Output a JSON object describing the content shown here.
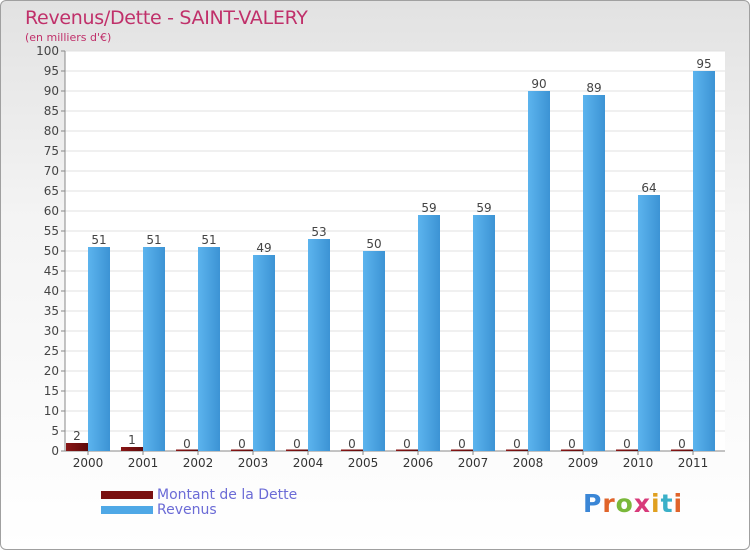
{
  "title": "Revenus/Dette - SAINT-VALERY",
  "subtitle": "(en milliers d'€)",
  "logo": {
    "text": "Proxiti"
  },
  "chart_data": {
    "type": "bar",
    "categories": [
      "2000",
      "2001",
      "2002",
      "2003",
      "2004",
      "2005",
      "2006",
      "2007",
      "2008",
      "2009",
      "2010",
      "2011"
    ],
    "series": [
      {
        "name": "Montant de la Dette",
        "values": [
          2,
          1,
          0,
          0,
          0,
          0,
          0,
          0,
          0,
          0,
          0,
          0
        ],
        "color": "#7a1010"
      },
      {
        "name": "Revenus",
        "values": [
          51,
          51,
          51,
          49,
          53,
          50,
          59,
          59,
          90,
          89,
          64,
          95
        ],
        "color": "#4fa8e6"
      }
    ],
    "ylim": [
      0,
      100
    ],
    "yticks": [
      0,
      5,
      10,
      15,
      20,
      25,
      30,
      35,
      40,
      45,
      50,
      55,
      60,
      65,
      70,
      75,
      80,
      85,
      90,
      95,
      100
    ],
    "grid": true,
    "legend_position": "bottom-left",
    "data_labels": true
  }
}
